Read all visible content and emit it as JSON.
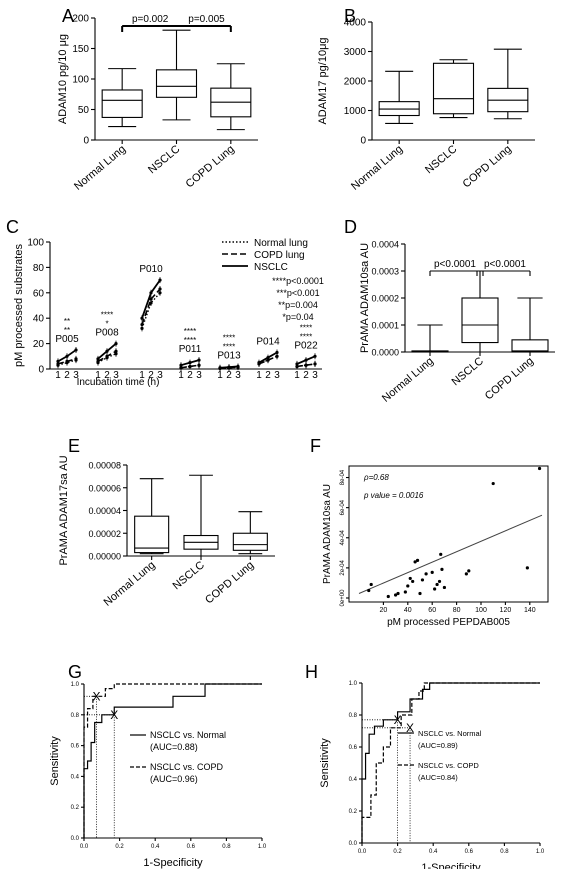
{
  "panels": {
    "A": {
      "letter": "A"
    },
    "B": {
      "letter": "B"
    },
    "C": {
      "letter": "C"
    },
    "D": {
      "letter": "D"
    },
    "E": {
      "letter": "E"
    },
    "F": {
      "letter": "F"
    },
    "G": {
      "letter": "G"
    },
    "H": {
      "letter": "H"
    }
  },
  "chart_data": [
    {
      "id": "A",
      "type": "box",
      "ylabel": "ADAM10 pg/10 μg",
      "yticks": [
        0,
        50,
        100,
        150,
        200
      ],
      "ylim": [
        0,
        200
      ],
      "categories": [
        "Normal Lung",
        "NSCLC",
        "COPD Lung"
      ],
      "boxes": [
        {
          "min": 22,
          "q1": 37,
          "median": 65,
          "q3": 82,
          "max": 117
        },
        {
          "min": 33,
          "q1": 70,
          "median": 88,
          "q3": 115,
          "max": 180
        },
        {
          "min": 17,
          "q1": 38,
          "median": 62,
          "q3": 85,
          "max": 125
        }
      ],
      "annotations": [
        "p=0.002",
        "p=0.005"
      ]
    },
    {
      "id": "B",
      "type": "box",
      "ylabel": "ADAM17 pg/10μg",
      "yticks": [
        0,
        1000,
        2000,
        3000,
        4000
      ],
      "ylim": [
        0,
        4000
      ],
      "categories": [
        "Normal Lung",
        "NSCLC",
        "COPD Lung"
      ],
      "boxes": [
        {
          "min": 560,
          "q1": 830,
          "median": 1050,
          "q3": 1300,
          "max": 2330
        },
        {
          "min": 760,
          "q1": 890,
          "median": 1400,
          "q3": 2600,
          "max": 2720
        },
        {
          "min": 720,
          "q1": 960,
          "median": 1350,
          "q3": 1750,
          "max": 3080
        }
      ]
    },
    {
      "id": "C",
      "type": "line",
      "ylabel": "pM processed substrates",
      "xlabel": "Incubation time (h)",
      "yticks": [
        0,
        20,
        40,
        60,
        80,
        100
      ],
      "ylim": [
        0,
        100
      ],
      "groups": [
        "P005",
        "P008",
        "P010",
        "P011",
        "P013",
        "P014",
        "P022"
      ],
      "xticks": [
        "1",
        "2",
        "3"
      ],
      "series_names": [
        "Normal lung",
        "COPD lung",
        "NSCLC"
      ],
      "values": {
        "P005": [
          [
            3,
            5,
            7
          ],
          [
            4,
            6,
            8
          ],
          [
            6,
            10,
            15
          ]
        ],
        "P008": [
          [
            5,
            9,
            12
          ],
          [
            6,
            10,
            14
          ],
          [
            8,
            14,
            20
          ]
        ],
        "P010": [
          [
            32,
            52,
            60
          ],
          [
            35,
            55,
            63
          ],
          [
            40,
            60,
            70
          ]
        ],
        "P011": [
          [
            1,
            2,
            3
          ],
          [
            1,
            2,
            3
          ],
          [
            3,
            5,
            7
          ]
        ],
        "P013": [
          [
            0.5,
            1,
            1.5
          ],
          [
            0.5,
            1,
            1.5
          ],
          [
            1,
            1.5,
            2
          ]
        ],
        "P014": [
          [
            4,
            7,
            10
          ],
          [
            4,
            7,
            10
          ],
          [
            5,
            9,
            13
          ]
        ],
        "P022": [
          [
            2,
            3,
            4
          ],
          [
            2,
            3,
            4
          ],
          [
            4,
            7,
            10
          ]
        ]
      },
      "group_stars": {
        "P005": [
          "**",
          "**"
        ],
        "P008": [
          "****",
          "*"
        ],
        "P011": [
          "****",
          "****"
        ],
        "P013": [
          "****",
          "****"
        ],
        "P022": [
          "****",
          "****"
        ]
      },
      "legend_stats": [
        "****p<0.0001",
        "***p<0.001",
        "**p=0.004",
        "*p=0.04"
      ]
    },
    {
      "id": "D",
      "type": "box",
      "ylabel": "PrAMA ADAM10sa AU",
      "yticks": [
        "0.0000",
        "0.0001",
        "0.0002",
        "0.0003",
        "0.0004"
      ],
      "ylim": [
        0,
        0.0004
      ],
      "categories": [
        "Normal Lung",
        "NSCLC",
        "COPD Lung"
      ],
      "boxes": [
        {
          "min": 0,
          "q1": 0,
          "median": 0,
          "q3": 4e-06,
          "max": 0.0001
        },
        {
          "min": 0,
          "q1": 3.5e-05,
          "median": 0.0001,
          "q3": 0.0002,
          "max": 0.0003
        },
        {
          "min": 0,
          "q1": 0,
          "median": 4e-06,
          "q3": 4.5e-05,
          "max": 0.0002
        }
      ],
      "annotations": [
        "p<0.0001",
        "p<0.0001"
      ]
    },
    {
      "id": "E",
      "type": "box",
      "ylabel": "PrAMA ADAM17sa AU",
      "yticks": [
        "0.00000",
        "0.00002",
        "0.00004",
        "0.00006",
        "0.00008"
      ],
      "ylim": [
        0,
        8e-05
      ],
      "categories": [
        "Normal Lung",
        "NSCLC",
        "COPD Lung"
      ],
      "boxes": [
        {
          "min": 2e-06,
          "q1": 3e-06,
          "median": 7e-06,
          "q3": 3.5e-05,
          "max": 6.8e-05
        },
        {
          "min": 0,
          "q1": 6e-06,
          "median": 1.2e-05,
          "q3": 1.8e-05,
          "max": 7.1e-05
        },
        {
          "min": 2e-06,
          "q1": 5e-06,
          "median": 1e-05,
          "q3": 2e-05,
          "max": 3.9e-05
        }
      ]
    },
    {
      "id": "F",
      "type": "scatter",
      "ylabel": "PrAMA ADAM10sa AU",
      "xlabel": "pM processed PEPDAB005",
      "xticks": [
        "20",
        "40",
        "60",
        "80",
        "100",
        "120",
        "140"
      ],
      "xlim": [
        0,
        150
      ],
      "yticks": [
        "0e+00",
        "2e-04",
        "4e-04",
        "6e-04",
        "8e-04"
      ],
      "ylim": [
        0,
        0.00085
      ],
      "rho": "ρ=0.68",
      "pvalue": "p value = 0.0016",
      "points": [
        [
          8,
          5e-05
        ],
        [
          10,
          9e-05
        ],
        [
          24,
          1e-05
        ],
        [
          30,
          2e-05
        ],
        [
          32,
          3e-05
        ],
        [
          38,
          4e-05
        ],
        [
          40,
          8e-05
        ],
        [
          42,
          0.00013
        ],
        [
          44,
          0.00011
        ],
        [
          46,
          0.00024
        ],
        [
          48,
          0.00025
        ],
        [
          50,
          3e-05
        ],
        [
          52,
          0.00012
        ],
        [
          55,
          0.00016
        ],
        [
          60,
          0.00017
        ],
        [
          62,
          6e-05
        ],
        [
          64,
          9e-05
        ],
        [
          66,
          0.00011
        ],
        [
          67,
          0.00029
        ],
        [
          68,
          0.00019
        ],
        [
          70,
          7e-05
        ],
        [
          88,
          0.00016
        ],
        [
          90,
          0.00018
        ],
        [
          110,
          0.00076
        ],
        [
          138,
          0.0002
        ],
        [
          148,
          0.00086
        ]
      ],
      "fit_line": [
        [
          0,
          3e-05
        ],
        [
          150,
          0.00055
        ]
      ]
    },
    {
      "id": "G",
      "type": "roc",
      "ylabel": "Sensitivity",
      "xlabel": "1-Specificity",
      "ticks": [
        "0.0",
        "0.2",
        "0.4",
        "0.6",
        "0.8",
        "1.0"
      ],
      "series": [
        {
          "name": "NSCLC vs. Normal",
          "auc": "(AUC=0.88)",
          "style": "solid",
          "points": [
            [
              0,
              0
            ],
            [
              0,
              0.45
            ],
            [
              0.02,
              0.45
            ],
            [
              0.02,
              0.5
            ],
            [
              0.04,
              0.5
            ],
            [
              0.04,
              0.62
            ],
            [
              0.06,
              0.62
            ],
            [
              0.06,
              0.75
            ],
            [
              0.1,
              0.75
            ],
            [
              0.1,
              0.8
            ],
            [
              0.17,
              0.8
            ],
            [
              0.17,
              0.85
            ],
            [
              0.5,
              0.85
            ],
            [
              0.5,
              0.92
            ],
            [
              0.68,
              0.92
            ],
            [
              0.68,
              1
            ],
            [
              1,
              1
            ]
          ]
        },
        {
          "name": "NSCLC vs. COPD",
          "auc": "(AUC=0.96)",
          "style": "dashed",
          "points": [
            [
              0,
              0
            ],
            [
              0,
              0.72
            ],
            [
              0.02,
              0.72
            ],
            [
              0.02,
              0.84
            ],
            [
              0.05,
              0.84
            ],
            [
              0.05,
              0.92
            ],
            [
              0.12,
              0.92
            ],
            [
              0.12,
              0.97
            ],
            [
              0.17,
              0.97
            ],
            [
              0.17,
              1
            ],
            [
              1,
              1
            ]
          ]
        }
      ],
      "markers": [
        [
          0.07,
          0.92
        ],
        [
          0.17,
          0.8
        ]
      ]
    },
    {
      "id": "H",
      "type": "roc",
      "ylabel": "Sensitivity",
      "xlabel": "1-Specificity",
      "ticks": [
        "0.0",
        "0.2",
        "0.4",
        "0.6",
        "0.8",
        "1.0"
      ],
      "yticks": [
        "0.0",
        "0.2",
        "0.4",
        "0.6",
        "0.8",
        "1.0"
      ],
      "series": [
        {
          "name": "NSCLC vs. Normal",
          "auc": "(AUC=0.89)",
          "style": "solid",
          "points": [
            [
              0,
              0
            ],
            [
              0,
              0.4
            ],
            [
              0.02,
              0.4
            ],
            [
              0.02,
              0.56
            ],
            [
              0.04,
              0.56
            ],
            [
              0.04,
              0.68
            ],
            [
              0.07,
              0.68
            ],
            [
              0.07,
              0.73
            ],
            [
              0.12,
              0.73
            ],
            [
              0.12,
              0.77
            ],
            [
              0.2,
              0.77
            ],
            [
              0.2,
              0.82
            ],
            [
              0.27,
              0.82
            ],
            [
              0.27,
              0.9
            ],
            [
              0.34,
              0.9
            ],
            [
              0.34,
              0.96
            ],
            [
              0.38,
              0.96
            ],
            [
              0.38,
              1
            ],
            [
              1,
              1
            ]
          ]
        },
        {
          "name": "NSCLC vs. COPD",
          "auc": "(AUC=0.84)",
          "style": "dashed",
          "points": [
            [
              0,
              0
            ],
            [
              0,
              0.16
            ],
            [
              0.05,
              0.16
            ],
            [
              0.05,
              0.3
            ],
            [
              0.08,
              0.3
            ],
            [
              0.08,
              0.5
            ],
            [
              0.12,
              0.5
            ],
            [
              0.12,
              0.6
            ],
            [
              0.16,
              0.6
            ],
            [
              0.16,
              0.72
            ],
            [
              0.22,
              0.72
            ],
            [
              0.22,
              0.8
            ],
            [
              0.28,
              0.8
            ],
            [
              0.28,
              0.9
            ],
            [
              0.32,
              0.9
            ],
            [
              0.32,
              0.95
            ],
            [
              0.35,
              0.95
            ],
            [
              0.35,
              1
            ],
            [
              1,
              1
            ]
          ]
        }
      ],
      "markers": [
        [
          0.2,
          0.77
        ],
        [
          0.27,
          0.72
        ]
      ]
    }
  ]
}
